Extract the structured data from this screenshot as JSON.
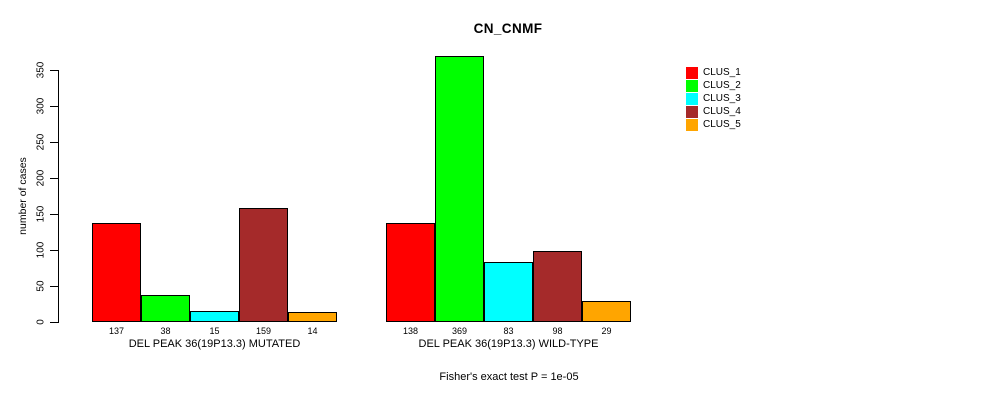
{
  "chart_data": {
    "type": "bar",
    "title": "CN_CNMF",
    "ylabel": "number of cases",
    "xlabel": "",
    "ylim": [
      0,
      350
    ],
    "yticks": [
      0,
      50,
      100,
      150,
      200,
      250,
      300,
      350
    ],
    "grid": false,
    "legend_position": "top-right",
    "series": [
      {
        "name": "CLUS_1",
        "color": "#FF0000"
      },
      {
        "name": "CLUS_2",
        "color": "#00FF00"
      },
      {
        "name": "CLUS_3",
        "color": "#00FFFF"
      },
      {
        "name": "CLUS_4",
        "color": "#A52A2A"
      },
      {
        "name": "CLUS_5",
        "color": "#FFA500"
      }
    ],
    "groups": [
      {
        "label": "DEL PEAK 36(19P13.3) MUTATED",
        "values": [
          137,
          38,
          15,
          159,
          14
        ]
      },
      {
        "label": "DEL PEAK 36(19P13.3) WILD-TYPE",
        "values": [
          138,
          369,
          83,
          98,
          29
        ]
      }
    ],
    "footnote": "Fisher's exact test P = 1e-05"
  }
}
